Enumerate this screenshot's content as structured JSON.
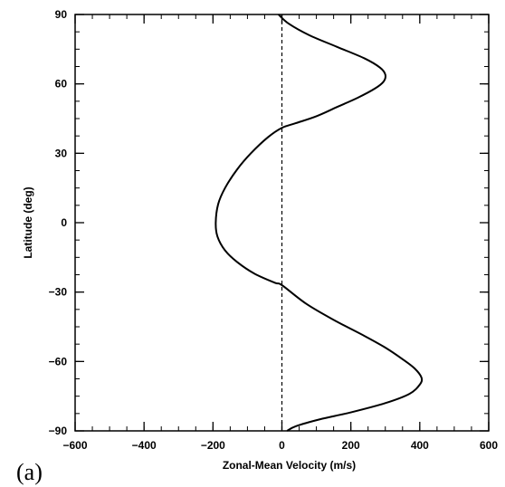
{
  "chart_data": {
    "type": "line",
    "panel_label": "(a)",
    "xlabel": "Zonal-Mean Velocity (m/s)",
    "ylabel": "Latitude (deg)",
    "xlim": [
      -600,
      600
    ],
    "ylim": [
      -90,
      90
    ],
    "xticks": [
      -600,
      -400,
      -200,
      0,
      200,
      400,
      600
    ],
    "yticks": [
      -90,
      -60,
      -30,
      0,
      30,
      60,
      90
    ],
    "x_minor_step": 50,
    "y_minor_step": 7.5,
    "grid": false,
    "legend": "none",
    "reference_line": {
      "x": 0,
      "style": "dashed"
    },
    "series": [
      {
        "style": "solid",
        "points": [
          [
            -10,
            90
          ],
          [
            20,
            86
          ],
          [
            80,
            81
          ],
          [
            160,
            76
          ],
          [
            240,
            71
          ],
          [
            285,
            67
          ],
          [
            300,
            64
          ],
          [
            295,
            61
          ],
          [
            270,
            58
          ],
          [
            220,
            54
          ],
          [
            160,
            50
          ],
          [
            100,
            46
          ],
          [
            40,
            43
          ],
          [
            0,
            41
          ],
          [
            -40,
            37
          ],
          [
            -90,
            30
          ],
          [
            -130,
            23
          ],
          [
            -165,
            15
          ],
          [
            -185,
            8
          ],
          [
            -192,
            0
          ],
          [
            -187,
            -6
          ],
          [
            -165,
            -12
          ],
          [
            -130,
            -17
          ],
          [
            -80,
            -22
          ],
          [
            -20,
            -26
          ],
          [
            0,
            -27
          ],
          [
            70,
            -35
          ],
          [
            150,
            -42
          ],
          [
            240,
            -49
          ],
          [
            300,
            -54
          ],
          [
            350,
            -59
          ],
          [
            385,
            -63
          ],
          [
            405,
            -67
          ],
          [
            400,
            -70
          ],
          [
            370,
            -74
          ],
          [
            300,
            -78
          ],
          [
            200,
            -82
          ],
          [
            110,
            -85
          ],
          [
            40,
            -88
          ],
          [
            15,
            -90
          ]
        ]
      }
    ]
  }
}
